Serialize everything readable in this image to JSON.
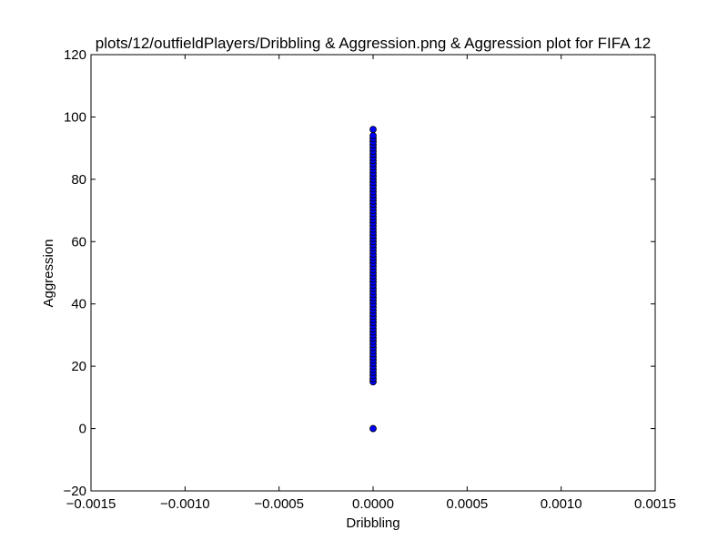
{
  "chart_data": {
    "type": "scatter",
    "title": "plots/12/outfieldPlayers/Dribbling & Aggression.png & Aggression plot for FIFA 12",
    "xlabel": "Dribbling",
    "ylabel": "Aggression",
    "xlim": [
      -0.0015,
      0.0015
    ],
    "ylim": [
      -20,
      120
    ],
    "xticks": [
      -0.0015,
      -0.001,
      -0.0005,
      0,
      0.0005,
      0.001,
      0.0015
    ],
    "xtick_labels": [
      "−0.0015",
      "−0.0010",
      "−0.0005",
      "0.0000",
      "0.0005",
      "0.0010",
      "0.0015"
    ],
    "yticks": [
      -20,
      0,
      20,
      40,
      60,
      80,
      100,
      120
    ],
    "ytick_labels": [
      "−20",
      "0",
      "20",
      "40",
      "60",
      "80",
      "100",
      "120"
    ],
    "grid": false,
    "marker_color": "#0000ff",
    "marker_edge_color": "#000000",
    "points": [
      {
        "x": 0,
        "y": 0
      },
      {
        "x": 0,
        "y": 15
      },
      {
        "x": 0,
        "y": 16
      },
      {
        "x": 0,
        "y": 17
      },
      {
        "x": 0,
        "y": 18
      },
      {
        "x": 0,
        "y": 19
      },
      {
        "x": 0,
        "y": 20
      },
      {
        "x": 0,
        "y": 21
      },
      {
        "x": 0,
        "y": 22
      },
      {
        "x": 0,
        "y": 23
      },
      {
        "x": 0,
        "y": 24
      },
      {
        "x": 0,
        "y": 25
      },
      {
        "x": 0,
        "y": 26
      },
      {
        "x": 0,
        "y": 27
      },
      {
        "x": 0,
        "y": 28
      },
      {
        "x": 0,
        "y": 29
      },
      {
        "x": 0,
        "y": 30
      },
      {
        "x": 0,
        "y": 31
      },
      {
        "x": 0,
        "y": 32
      },
      {
        "x": 0,
        "y": 33
      },
      {
        "x": 0,
        "y": 34
      },
      {
        "x": 0,
        "y": 35
      },
      {
        "x": 0,
        "y": 36
      },
      {
        "x": 0,
        "y": 37
      },
      {
        "x": 0,
        "y": 38
      },
      {
        "x": 0,
        "y": 39
      },
      {
        "x": 0,
        "y": 40
      },
      {
        "x": 0,
        "y": 41
      },
      {
        "x": 0,
        "y": 42
      },
      {
        "x": 0,
        "y": 43
      },
      {
        "x": 0,
        "y": 44
      },
      {
        "x": 0,
        "y": 45
      },
      {
        "x": 0,
        "y": 46
      },
      {
        "x": 0,
        "y": 47
      },
      {
        "x": 0,
        "y": 48
      },
      {
        "x": 0,
        "y": 49
      },
      {
        "x": 0,
        "y": 50
      },
      {
        "x": 0,
        "y": 51
      },
      {
        "x": 0,
        "y": 52
      },
      {
        "x": 0,
        "y": 53
      },
      {
        "x": 0,
        "y": 54
      },
      {
        "x": 0,
        "y": 55
      },
      {
        "x": 0,
        "y": 56
      },
      {
        "x": 0,
        "y": 57
      },
      {
        "x": 0,
        "y": 58
      },
      {
        "x": 0,
        "y": 59
      },
      {
        "x": 0,
        "y": 60
      },
      {
        "x": 0,
        "y": 61
      },
      {
        "x": 0,
        "y": 62
      },
      {
        "x": 0,
        "y": 63
      },
      {
        "x": 0,
        "y": 64
      },
      {
        "x": 0,
        "y": 65
      },
      {
        "x": 0,
        "y": 66
      },
      {
        "x": 0,
        "y": 67
      },
      {
        "x": 0,
        "y": 68
      },
      {
        "x": 0,
        "y": 69
      },
      {
        "x": 0,
        "y": 70
      },
      {
        "x": 0,
        "y": 71
      },
      {
        "x": 0,
        "y": 72
      },
      {
        "x": 0,
        "y": 73
      },
      {
        "x": 0,
        "y": 74
      },
      {
        "x": 0,
        "y": 75
      },
      {
        "x": 0,
        "y": 76
      },
      {
        "x": 0,
        "y": 77
      },
      {
        "x": 0,
        "y": 78
      },
      {
        "x": 0,
        "y": 79
      },
      {
        "x": 0,
        "y": 80
      },
      {
        "x": 0,
        "y": 81
      },
      {
        "x": 0,
        "y": 82
      },
      {
        "x": 0,
        "y": 83
      },
      {
        "x": 0,
        "y": 84
      },
      {
        "x": 0,
        "y": 85
      },
      {
        "x": 0,
        "y": 86
      },
      {
        "x": 0,
        "y": 87
      },
      {
        "x": 0,
        "y": 88
      },
      {
        "x": 0,
        "y": 89
      },
      {
        "x": 0,
        "y": 90
      },
      {
        "x": 0,
        "y": 91
      },
      {
        "x": 0,
        "y": 92
      },
      {
        "x": 0,
        "y": 93
      },
      {
        "x": 0,
        "y": 94
      },
      {
        "x": 0,
        "y": 96
      }
    ]
  }
}
